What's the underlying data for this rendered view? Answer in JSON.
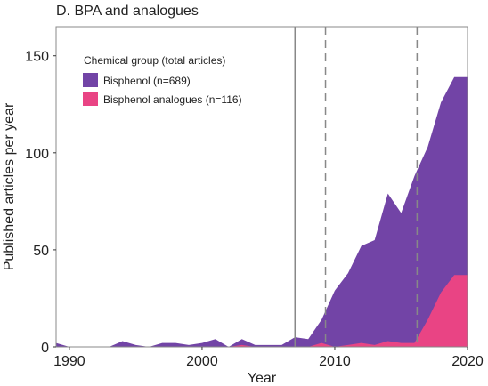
{
  "chart_data": {
    "type": "area",
    "title": "D. BPA and analogues",
    "xlabel": "Year",
    "ylabel": "Published articles per year",
    "xlim": [
      1989,
      2020
    ],
    "ylim": [
      0,
      165
    ],
    "xticks": [
      1990,
      2000,
      2010,
      2020
    ],
    "yticks": [
      0,
      50,
      100,
      150
    ],
    "grid": false,
    "legend": {
      "title": "Chemical group (total articles)",
      "placement": "top-left"
    },
    "x": [
      1989,
      1990,
      1991,
      1992,
      1993,
      1994,
      1995,
      1996,
      1997,
      1998,
      1999,
      2000,
      2001,
      2002,
      2003,
      2004,
      2005,
      2006,
      2007,
      2008,
      2009,
      2010,
      2011,
      2012,
      2013,
      2014,
      2015,
      2016,
      2017,
      2018,
      2019,
      2020
    ],
    "series": [
      {
        "name": "Bisphenol (n=689)",
        "color": "#7244a6",
        "values": [
          2,
          0,
          0,
          0,
          0,
          3,
          1,
          0,
          2,
          2,
          1,
          2,
          4,
          0,
          4,
          1,
          1,
          1,
          5,
          4,
          14,
          29,
          38,
          52,
          55,
          79,
          69,
          88,
          103,
          126,
          139,
          139
        ]
      },
      {
        "name": "Bisphenol analogues (n=116)",
        "color": "#e94484",
        "values": [
          0,
          0,
          0,
          0,
          0,
          0,
          0,
          0,
          0,
          0,
          0,
          0,
          0,
          0,
          1,
          0,
          0,
          0,
          0,
          0,
          2,
          0,
          1,
          2,
          1,
          3,
          2,
          2,
          14,
          28,
          37,
          37
        ]
      }
    ],
    "reference_lines": [
      {
        "x": 2007,
        "style": "solid",
        "color": "#888888"
      },
      {
        "x": 2009.3,
        "style": "dashed",
        "color": "#888888"
      },
      {
        "x": 2016.2,
        "style": "dashed",
        "color": "#888888"
      }
    ]
  }
}
